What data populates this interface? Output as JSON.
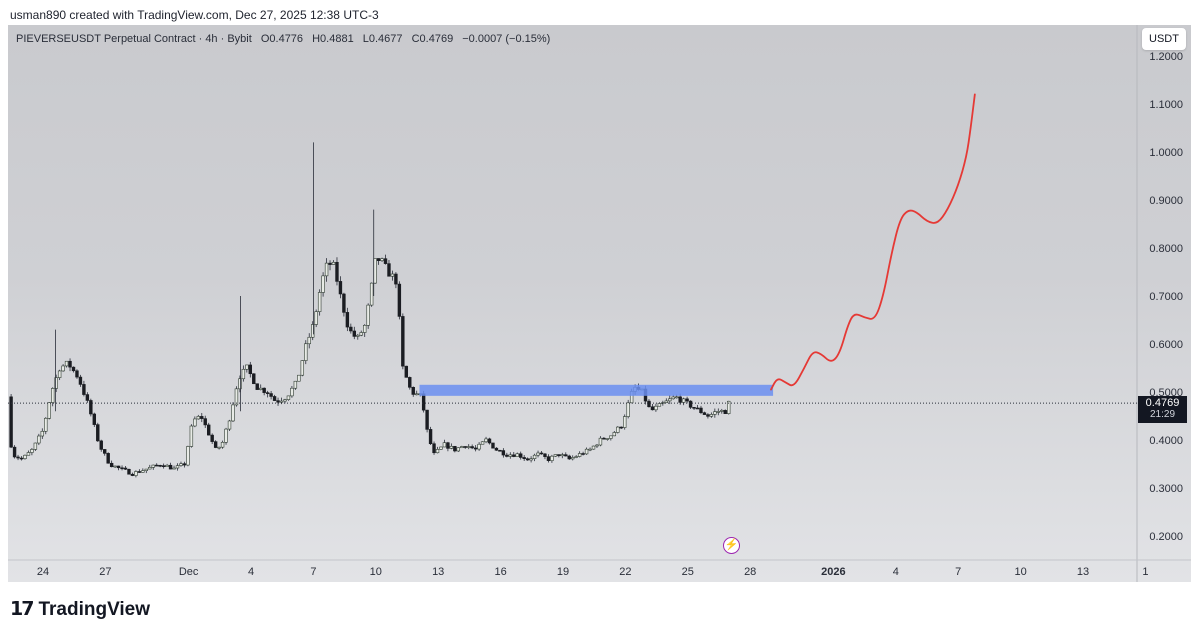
{
  "header": {
    "caption": "usman890 created with TradingView.com, Dec 27, 2025 12:38 UTC-3"
  },
  "legend": {
    "symbol": "PIEVERSEUSDT Perpetual Contract · 4h · Bybit",
    "open": "O0.4776",
    "high": "H0.4881",
    "low": "L0.4677",
    "close": "C0.4769",
    "change": "−0.0007 (−0.15%)"
  },
  "unit_label": "USDT",
  "last_price": {
    "value": "0.4769",
    "countdown": "21:29"
  },
  "footer": {
    "brand": "TradingView"
  },
  "colors": {
    "up": "#2f3b31",
    "down": "#1b1d22",
    "zone": "#6b8ff0",
    "projection": "#e53935",
    "wick": "#2a2e39"
  },
  "chart_data": {
    "type": "candlestick",
    "ylim": [
      0.16,
      1.24
    ],
    "y_ticks": [
      "1.2000",
      "1.1000",
      "1.0000",
      "0.9000",
      "0.8000",
      "0.7000",
      "0.6000",
      "0.5000",
      "0.4000",
      "0.3000",
      "0.2000"
    ],
    "x_ticks": [
      {
        "label": "24",
        "day": 0
      },
      {
        "label": "27",
        "day": 3
      },
      {
        "label": "Dec",
        "day": 7
      },
      {
        "label": "4",
        "day": 10
      },
      {
        "label": "7",
        "day": 13
      },
      {
        "label": "10",
        "day": 16
      },
      {
        "label": "13",
        "day": 19
      },
      {
        "label": "16",
        "day": 22
      },
      {
        "label": "19",
        "day": 25
      },
      {
        "label": "22",
        "day": 28
      },
      {
        "label": "25",
        "day": 31
      },
      {
        "label": "28",
        "day": 34
      },
      {
        "label": "2026",
        "day": 38,
        "bold": true
      },
      {
        "label": "4",
        "day": 41
      },
      {
        "label": "7",
        "day": 44
      },
      {
        "label": "10",
        "day": 47
      },
      {
        "label": "13",
        "day": 50
      },
      {
        "label": "1",
        "day": 53
      }
    ],
    "price_path": [
      [
        -1.7,
        0.49
      ],
      [
        -1.5,
        0.37
      ],
      [
        -1.0,
        0.36
      ],
      [
        -0.5,
        0.38
      ],
      [
        0.0,
        0.42
      ],
      [
        0.4,
        0.5
      ],
      [
        0.8,
        0.55
      ],
      [
        1.2,
        0.56
      ],
      [
        1.7,
        0.53
      ],
      [
        2.2,
        0.47
      ],
      [
        2.7,
        0.39
      ],
      [
        3.2,
        0.35
      ],
      [
        3.7,
        0.34
      ],
      [
        4.3,
        0.33
      ],
      [
        5.0,
        0.34
      ],
      [
        5.7,
        0.35
      ],
      [
        6.3,
        0.34
      ],
      [
        6.8,
        0.35
      ],
      [
        7.2,
        0.44
      ],
      [
        7.6,
        0.45
      ],
      [
        8.0,
        0.41
      ],
      [
        8.3,
        0.38
      ],
      [
        8.6,
        0.39
      ],
      [
        9.0,
        0.45
      ],
      [
        9.4,
        0.53
      ],
      [
        9.8,
        0.55
      ],
      [
        10.3,
        0.51
      ],
      [
        10.8,
        0.5
      ],
      [
        11.2,
        0.48
      ],
      [
        11.7,
        0.49
      ],
      [
        12.2,
        0.52
      ],
      [
        12.6,
        0.59
      ],
      [
        13.0,
        0.64
      ],
      [
        13.4,
        0.73
      ],
      [
        13.7,
        0.77
      ],
      [
        14.0,
        0.76
      ],
      [
        14.3,
        0.7
      ],
      [
        14.7,
        0.63
      ],
      [
        15.1,
        0.61
      ],
      [
        15.5,
        0.64
      ],
      [
        15.8,
        0.72
      ],
      [
        16.0,
        0.78
      ],
      [
        16.3,
        0.77
      ],
      [
        16.6,
        0.75
      ],
      [
        17.0,
        0.73
      ],
      [
        17.3,
        0.55
      ],
      [
        17.7,
        0.5
      ],
      [
        18.2,
        0.49
      ],
      [
        18.5,
        0.41
      ],
      [
        18.8,
        0.37
      ],
      [
        19.3,
        0.39
      ],
      [
        19.8,
        0.38
      ],
      [
        20.3,
        0.39
      ],
      [
        20.8,
        0.38
      ],
      [
        21.3,
        0.4
      ],
      [
        21.8,
        0.38
      ],
      [
        22.3,
        0.37
      ],
      [
        22.8,
        0.37
      ],
      [
        23.3,
        0.36
      ],
      [
        23.8,
        0.37
      ],
      [
        24.3,
        0.36
      ],
      [
        24.8,
        0.37
      ],
      [
        25.3,
        0.36
      ],
      [
        25.8,
        0.37
      ],
      [
        26.3,
        0.38
      ],
      [
        26.8,
        0.4
      ],
      [
        27.3,
        0.41
      ],
      [
        27.8,
        0.43
      ],
      [
        28.1,
        0.47
      ],
      [
        28.4,
        0.51
      ],
      [
        28.8,
        0.5
      ],
      [
        29.2,
        0.46
      ],
      [
        29.6,
        0.47
      ],
      [
        30.0,
        0.48
      ],
      [
        30.4,
        0.49
      ],
      [
        30.8,
        0.48
      ],
      [
        31.2,
        0.47
      ],
      [
        31.6,
        0.46
      ],
      [
        32.0,
        0.45
      ],
      [
        32.4,
        0.46
      ],
      [
        32.8,
        0.46
      ],
      [
        33.0,
        0.48
      ]
    ],
    "wick_spikes": [
      [
        13.0,
        1.02,
        0.62
      ],
      [
        15.9,
        0.88,
        0.7
      ],
      [
        9.5,
        0.7,
        0.46
      ],
      [
        0.6,
        0.63,
        0.46
      ]
    ],
    "zone": {
      "x0": 18.1,
      "x1": 35.1,
      "y0": 0.492,
      "y1": 0.515
    },
    "projection": [
      [
        35.0,
        0.505
      ],
      [
        35.3,
        0.53
      ],
      [
        35.7,
        0.52
      ],
      [
        36.1,
        0.51
      ],
      [
        36.6,
        0.55
      ],
      [
        37.0,
        0.585
      ],
      [
        37.4,
        0.58
      ],
      [
        37.9,
        0.56
      ],
      [
        38.3,
        0.58
      ],
      [
        38.7,
        0.64
      ],
      [
        39.0,
        0.665
      ],
      [
        39.5,
        0.655
      ],
      [
        40.0,
        0.65
      ],
      [
        40.4,
        0.7
      ],
      [
        40.8,
        0.79
      ],
      [
        41.2,
        0.86
      ],
      [
        41.6,
        0.88
      ],
      [
        42.0,
        0.875
      ],
      [
        42.5,
        0.855
      ],
      [
        43.0,
        0.85
      ],
      [
        43.5,
        0.88
      ],
      [
        44.0,
        0.93
      ],
      [
        44.4,
        0.99
      ],
      [
        44.6,
        1.05
      ],
      [
        44.8,
        1.12
      ]
    ],
    "last_price": 0.4769
  }
}
